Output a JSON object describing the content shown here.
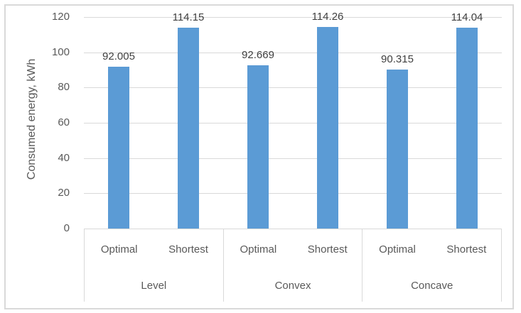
{
  "chart_data": {
    "type": "bar",
    "title": "",
    "xlabel": "",
    "ylabel": "Consumed energy, kWh",
    "ylim": [
      0,
      120
    ],
    "yticks": [
      0,
      20,
      40,
      60,
      80,
      100,
      120
    ],
    "grid": true,
    "legend": "none",
    "groups": [
      {
        "label": "Level",
        "categories": [
          "Optimal",
          "Shortest"
        ],
        "values": [
          92.005,
          114.15
        ],
        "data_labels": [
          "92.005",
          "114.15"
        ]
      },
      {
        "label": "Convex",
        "categories": [
          "Optimal",
          "Shortest"
        ],
        "values": [
          92.669,
          114.26
        ],
        "data_labels": [
          "92.669",
          "114.26"
        ]
      },
      {
        "label": "Concave",
        "categories": [
          "Optimal",
          "Shortest"
        ],
        "values": [
          90.315,
          114.04
        ],
        "data_labels": [
          "90.315",
          "114.04"
        ]
      }
    ],
    "colors": {
      "bar": "#5B9BD5",
      "gridline": "#D9D9D9",
      "axis_line": "#D9D9D9",
      "axis_text": "#595959",
      "data_label_text": "#3F3F3F",
      "chart_border": "#D9D9D9",
      "background": "#FFFFFF"
    }
  }
}
